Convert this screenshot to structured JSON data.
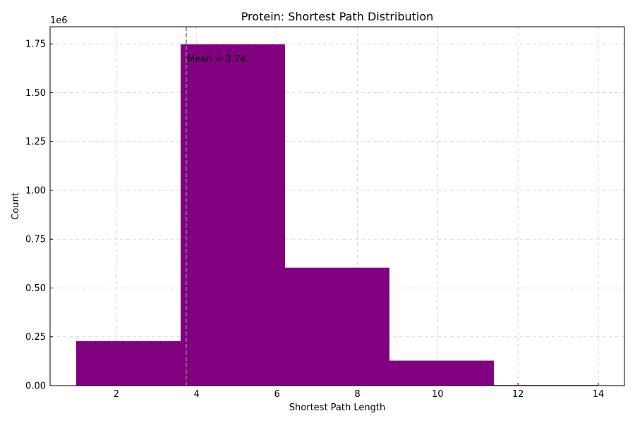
{
  "chart_data": {
    "type": "bar",
    "title": "Protein: Shortest Path Distribution",
    "xlabel": "Shortest Path Length",
    "ylabel": "Count",
    "y_offset_label": "1e6",
    "xlim": [
      0.35,
      14.65
    ],
    "ylim": [
      0,
      1837500
    ],
    "x_ticks": [
      2,
      4,
      6,
      8,
      10,
      12,
      14
    ],
    "x_tick_labels": [
      "2",
      "4",
      "6",
      "8",
      "10",
      "12",
      "14"
    ],
    "y_ticks": [
      0,
      250000,
      500000,
      750000,
      1000000,
      1250000,
      1500000,
      1750000
    ],
    "y_tick_labels": [
      "0.00",
      "0.25",
      "0.50",
      "0.75",
      "1.00",
      "1.25",
      "1.50",
      "1.75"
    ],
    "grid": true,
    "bar_color": "#800080",
    "bins": [
      {
        "x0": 1.0,
        "x1": 3.6,
        "value": 228000
      },
      {
        "x0": 3.6,
        "x1": 6.2,
        "value": 1748000
      },
      {
        "x0": 6.2,
        "x1": 8.8,
        "value": 604000
      },
      {
        "x0": 8.8,
        "x1": 11.4,
        "value": 128000
      },
      {
        "x0": 11.4,
        "x1": 14.0,
        "value": 3000
      }
    ],
    "mean": {
      "value": 3.74,
      "label": "Mean = 3.74",
      "color": "#808080"
    }
  }
}
